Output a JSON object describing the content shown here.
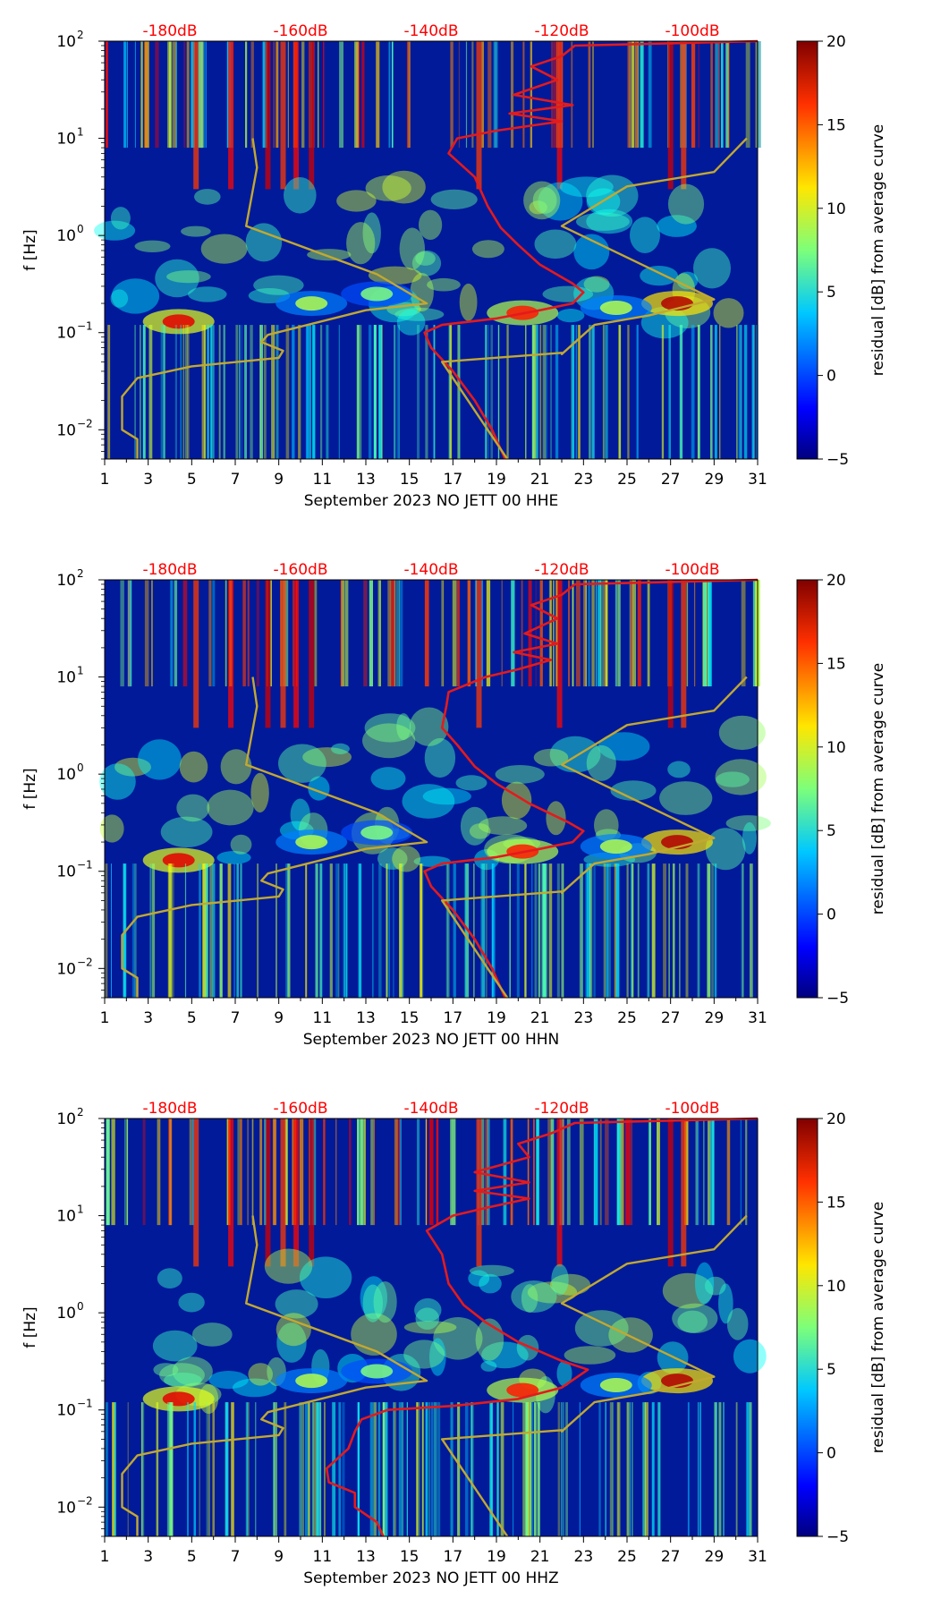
{
  "figure": {
    "title": "",
    "x_ticks": [
      "1",
      "3",
      "5",
      "7",
      "9",
      "11",
      "13",
      "15",
      "17",
      "19",
      "21",
      "23",
      "25",
      "27",
      "29",
      "31"
    ],
    "y_tick_labels": [
      {
        "base": "10",
        "exp": "2"
      },
      {
        "base": "10",
        "exp": "1"
      },
      {
        "base": "10",
        "exp": "0"
      },
      {
        "base": "10",
        "exp": "−1"
      },
      {
        "base": "10",
        "exp": "−2"
      }
    ],
    "ylabel": "f [Hz]",
    "db_labels": [
      "-180dB",
      "-160dB",
      "-140dB",
      "-120dB",
      "-100dB"
    ],
    "colorbar": {
      "label": "residual [dB] from average curve",
      "ticks": [
        "20",
        "15",
        "10",
        "5",
        "0",
        "−5"
      ],
      "range": [
        -5,
        20
      ]
    },
    "colors": {
      "psd_curve": "#e41a1c",
      "reference_curve": "#c2a830",
      "db_label": "#ff0000"
    }
  },
  "chart_data": [
    {
      "type": "heatmap",
      "title": "",
      "xlabel": "September 2023 NO JETT 00 HHE",
      "ylabel": "f [Hz]",
      "xlim": [
        1,
        31
      ],
      "ylim": [
        0.005,
        100
      ],
      "yscale": "log",
      "colorbar_label": "residual [dB] from average curve",
      "colorbar_range": [
        -5,
        20
      ],
      "series": [
        {
          "name": "PSD curve (top dB scale)",
          "color": "#e41a1c",
          "points": [
            [
              19.4,
              0.005
            ],
            [
              18.8,
              0.01
            ],
            [
              18.0,
              0.02
            ],
            [
              17.0,
              0.04
            ],
            [
              16.0,
              0.07
            ],
            [
              15.7,
              0.1
            ],
            [
              16.5,
              0.12
            ],
            [
              19.0,
              0.14
            ],
            [
              21.0,
              0.17
            ],
            [
              22.5,
              0.2
            ],
            [
              23.0,
              0.26
            ],
            [
              22.5,
              0.32
            ],
            [
              21.0,
              0.5
            ],
            [
              20.0,
              0.8
            ],
            [
              19.2,
              1.2
            ],
            [
              18.6,
              2.0
            ],
            [
              18.0,
              4.0
            ],
            [
              16.8,
              7.0
            ],
            [
              17.2,
              10.0
            ],
            [
              19.0,
              12.0
            ],
            [
              22.0,
              15.0
            ],
            [
              19.6,
              18.0
            ],
            [
              22.5,
              22.0
            ],
            [
              19.8,
              28.0
            ],
            [
              21.8,
              40.0
            ],
            [
              20.6,
              55.0
            ],
            [
              22.0,
              70.0
            ],
            [
              22.6,
              90.0
            ],
            [
              31.0,
              100.0
            ]
          ]
        },
        {
          "name": "Reference curve",
          "color": "#c2a830",
          "points": [
            [
              2.5,
              0.005
            ],
            [
              2.5,
              0.008
            ],
            [
              1.8,
              0.01
            ],
            [
              1.8,
              0.022
            ],
            [
              2.5,
              0.034
            ],
            [
              5.0,
              0.045
            ],
            [
              9.0,
              0.055
            ],
            [
              9.2,
              0.065
            ],
            [
              8.2,
              0.08
            ],
            [
              8.5,
              0.095
            ],
            [
              13.0,
              0.17
            ],
            [
              15.8,
              0.2
            ],
            [
              13.5,
              0.4
            ],
            [
              7.5,
              1.25
            ],
            [
              8.0,
              5.0
            ],
            [
              7.8,
              10.0
            ]
          ]
        },
        {
          "name": "Reference curve (right)",
          "color": "#c2a830",
          "points": [
            [
              19.5,
              0.005
            ],
            [
              16.5,
              0.05
            ],
            [
              22.0,
              0.062
            ],
            [
              22.0,
              0.06
            ],
            [
              23.5,
              0.12
            ],
            [
              26.0,
              0.15
            ],
            [
              29.0,
              0.22
            ],
            [
              22.0,
              1.25
            ],
            [
              25.0,
              3.2
            ],
            [
              29.0,
              4.5
            ],
            [
              30.5,
              10.0
            ]
          ]
        }
      ]
    },
    {
      "type": "heatmap",
      "title": "",
      "xlabel": "September 2023 NO JETT 00 HHN",
      "ylabel": "f [Hz]",
      "xlim": [
        1,
        31
      ],
      "ylim": [
        0.005,
        100
      ],
      "yscale": "log",
      "colorbar_label": "residual [dB] from average curve",
      "colorbar_range": [
        -5,
        20
      ],
      "series": [
        {
          "name": "PSD curve (top dB scale)",
          "color": "#e41a1c",
          "points": [
            [
              19.4,
              0.005
            ],
            [
              18.8,
              0.01
            ],
            [
              18.0,
              0.02
            ],
            [
              17.0,
              0.04
            ],
            [
              16.0,
              0.07
            ],
            [
              15.7,
              0.1
            ],
            [
              16.5,
              0.12
            ],
            [
              19.0,
              0.14
            ],
            [
              21.0,
              0.17
            ],
            [
              22.5,
              0.2
            ],
            [
              23.0,
              0.26
            ],
            [
              22.3,
              0.32
            ],
            [
              20.5,
              0.5
            ],
            [
              19.0,
              0.8
            ],
            [
              18.0,
              1.2
            ],
            [
              17.2,
              2.0
            ],
            [
              16.5,
              3.0
            ],
            [
              16.7,
              5.0
            ],
            [
              16.8,
              7.0
            ],
            [
              18.5,
              10.0
            ],
            [
              20.0,
              12.0
            ],
            [
              21.5,
              15.0
            ],
            [
              19.8,
              18.0
            ],
            [
              21.8,
              22.0
            ],
            [
              20.3,
              28.0
            ],
            [
              21.8,
              40.0
            ],
            [
              20.6,
              55.0
            ],
            [
              22.0,
              70.0
            ],
            [
              22.6,
              90.0
            ],
            [
              31.0,
              100.0
            ]
          ]
        },
        {
          "name": "Reference curve",
          "color": "#c2a830",
          "points": [
            [
              2.5,
              0.005
            ],
            [
              2.5,
              0.008
            ],
            [
              1.8,
              0.01
            ],
            [
              1.8,
              0.022
            ],
            [
              2.5,
              0.034
            ],
            [
              5.0,
              0.045
            ],
            [
              9.0,
              0.055
            ],
            [
              9.2,
              0.065
            ],
            [
              8.2,
              0.08
            ],
            [
              8.5,
              0.095
            ],
            [
              13.0,
              0.17
            ],
            [
              15.8,
              0.2
            ],
            [
              13.5,
              0.4
            ],
            [
              7.5,
              1.25
            ],
            [
              8.0,
              5.0
            ],
            [
              7.8,
              10.0
            ]
          ]
        },
        {
          "name": "Reference curve (right)",
          "color": "#c2a830",
          "points": [
            [
              19.5,
              0.005
            ],
            [
              16.5,
              0.05
            ],
            [
              22.0,
              0.062
            ],
            [
              22.0,
              0.06
            ],
            [
              23.5,
              0.12
            ],
            [
              26.0,
              0.15
            ],
            [
              29.0,
              0.22
            ],
            [
              22.0,
              1.25
            ],
            [
              25.0,
              3.2
            ],
            [
              29.0,
              4.5
            ],
            [
              30.5,
              10.0
            ]
          ]
        }
      ]
    },
    {
      "type": "heatmap",
      "title": "",
      "xlabel": "September 2023 NO JETT 00 HHZ",
      "ylabel": "f [Hz]",
      "xlim": [
        1,
        31
      ],
      "ylim": [
        0.005,
        100
      ],
      "yscale": "log",
      "colorbar_label": "residual [dB] from average curve",
      "colorbar_range": [
        -5,
        20
      ],
      "series": [
        {
          "name": "PSD curve (top dB scale)",
          "color": "#e41a1c",
          "points": [
            [
              13.8,
              0.005
            ],
            [
              13.5,
              0.007
            ],
            [
              12.5,
              0.01
            ],
            [
              12.5,
              0.014
            ],
            [
              11.3,
              0.018
            ],
            [
              11.2,
              0.025
            ],
            [
              12.2,
              0.04
            ],
            [
              12.5,
              0.06
            ],
            [
              12.8,
              0.08
            ],
            [
              14.0,
              0.1
            ],
            [
              17.0,
              0.11
            ],
            [
              20.0,
              0.13
            ],
            [
              22.0,
              0.17
            ],
            [
              23.2,
              0.26
            ],
            [
              22.0,
              0.32
            ],
            [
              20.0,
              0.5
            ],
            [
              18.5,
              0.8
            ],
            [
              17.5,
              1.2
            ],
            [
              16.8,
              2.0
            ],
            [
              16.5,
              4.0
            ],
            [
              15.8,
              7.0
            ],
            [
              17.0,
              10.0
            ],
            [
              18.5,
              12.0
            ],
            [
              20.5,
              15.0
            ],
            [
              18.0,
              18.0
            ],
            [
              20.5,
              22.0
            ],
            [
              18.0,
              28.0
            ],
            [
              20.5,
              40.0
            ],
            [
              20.0,
              55.0
            ],
            [
              21.5,
              70.0
            ],
            [
              22.6,
              90.0
            ],
            [
              31.0,
              100.0
            ]
          ]
        },
        {
          "name": "Reference curve",
          "color": "#c2a830",
          "points": [
            [
              2.5,
              0.005
            ],
            [
              2.5,
              0.008
            ],
            [
              1.8,
              0.01
            ],
            [
              1.8,
              0.022
            ],
            [
              2.5,
              0.034
            ],
            [
              5.0,
              0.045
            ],
            [
              9.0,
              0.055
            ],
            [
              9.2,
              0.065
            ],
            [
              8.2,
              0.08
            ],
            [
              8.5,
              0.095
            ],
            [
              13.0,
              0.17
            ],
            [
              15.8,
              0.2
            ],
            [
              13.5,
              0.4
            ],
            [
              7.5,
              1.25
            ],
            [
              8.0,
              5.0
            ],
            [
              7.8,
              10.0
            ]
          ]
        },
        {
          "name": "Reference curve (right)",
          "color": "#c2a830",
          "points": [
            [
              19.5,
              0.005
            ],
            [
              16.5,
              0.05
            ],
            [
              22.0,
              0.062
            ],
            [
              22.0,
              0.06
            ],
            [
              23.5,
              0.12
            ],
            [
              26.0,
              0.15
            ],
            [
              29.0,
              0.22
            ],
            [
              22.0,
              1.25
            ],
            [
              25.0,
              3.2
            ],
            [
              29.0,
              4.5
            ],
            [
              30.5,
              10.0
            ]
          ]
        }
      ]
    }
  ]
}
